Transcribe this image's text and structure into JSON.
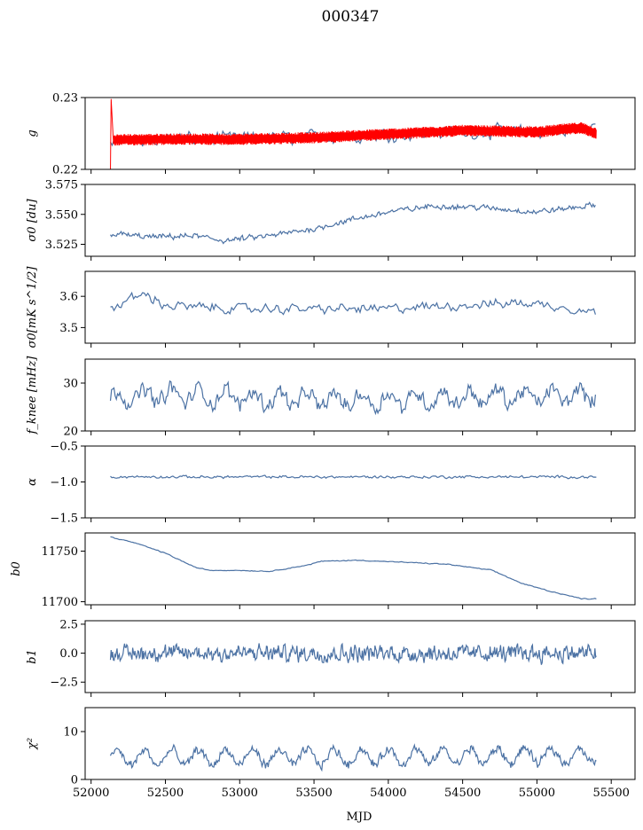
{
  "figure": {
    "title": "000347",
    "xlabel": "MJD",
    "xlim": [
      51960,
      55660
    ],
    "xticks": [
      52000,
      52500,
      53000,
      53500,
      54000,
      54500,
      55000,
      55500
    ],
    "x_data_range": [
      52130,
      55400
    ]
  },
  "colors": {
    "series": "#4c72a4",
    "fit": "#ff0000",
    "axes": "#000000"
  },
  "chart_data": [
    {
      "type": "line",
      "ylabel": "g",
      "ylim": [
        0.22,
        0.23
      ],
      "yticks": [
        "0.22",
        "0.23"
      ],
      "ytick_values": [
        0.22,
        0.23
      ],
      "series": [
        {
          "kind": "noisy",
          "trend": [
            [
              52130,
              0.2242
            ],
            [
              52500,
              0.2243
            ],
            [
              53000,
              0.2243
            ],
            [
              53500,
              0.2245
            ],
            [
              54000,
              0.2248
            ],
            [
              54500,
              0.2252
            ],
            [
              55000,
              0.2252
            ],
            [
              55400,
              0.2258
            ]
          ],
          "noise": 0.0011,
          "step": 12
        },
        {
          "kind": "band",
          "trend": [
            [
              52150,
              0.2241
            ],
            [
              52500,
              0.2242
            ],
            [
              53000,
              0.2242
            ],
            [
              53500,
              0.2244
            ],
            [
              54000,
              0.2249
            ],
            [
              54500,
              0.2254
            ],
            [
              55000,
              0.2252
            ],
            [
              55300,
              0.2258
            ],
            [
              55400,
              0.225
            ]
          ],
          "halfwidth": 0.0008,
          "spike": [
            [
              52130,
              0.2195
            ],
            [
              52135,
              0.2298
            ],
            [
              52150,
              0.224
            ]
          ]
        }
      ]
    },
    {
      "type": "line",
      "ylabel": "σ0 [du]",
      "ylim": [
        3.515,
        3.575
      ],
      "yticks": [
        "3.525",
        "3.550",
        "3.575"
      ],
      "ytick_values": [
        3.525,
        3.55,
        3.575
      ],
      "series": [
        {
          "kind": "noisy",
          "trend": [
            [
              52130,
              3.534
            ],
            [
              52400,
              3.531
            ],
            [
              52700,
              3.532
            ],
            [
              52900,
              3.528
            ],
            [
              53200,
              3.532
            ],
            [
              53500,
              3.538
            ],
            [
              53700,
              3.544
            ],
            [
              54000,
              3.552
            ],
            [
              54300,
              3.557
            ],
            [
              54600,
              3.556
            ],
            [
              55000,
              3.552
            ],
            [
              55400,
              3.558
            ]
          ],
          "noise": 0.0028,
          "step": 8
        }
      ]
    },
    {
      "type": "line",
      "ylabel": "σ0[mK s^1/2]",
      "ylim": [
        3.45,
        3.68
      ],
      "yticks": [
        "3.5",
        "3.6"
      ],
      "ytick_values": [
        3.5,
        3.6
      ],
      "series": [
        {
          "kind": "noisy",
          "trend": [
            [
              52130,
              3.56
            ],
            [
              52350,
              3.61
            ],
            [
              52500,
              3.57
            ],
            [
              53000,
              3.56
            ],
            [
              54000,
              3.56
            ],
            [
              54900,
              3.58
            ],
            [
              55100,
              3.57
            ],
            [
              55400,
              3.55
            ]
          ],
          "noise": 0.018,
          "step": 12
        }
      ]
    },
    {
      "type": "line",
      "ylabel": "f_knee [mHz]",
      "ylim": [
        20,
        35
      ],
      "yticks": [
        "20",
        "30"
      ],
      "ytick_values": [
        20,
        30
      ],
      "series": [
        {
          "kind": "noisy",
          "trend": [
            [
              52130,
              27
            ],
            [
              52500,
              27.5
            ],
            [
              53000,
              27
            ],
            [
              53500,
              26.5
            ],
            [
              54000,
              26.5
            ],
            [
              54500,
              27
            ],
            [
              55000,
              27.2
            ],
            [
              55400,
              27.5
            ]
          ],
          "noise": 1.9,
          "step": 8,
          "periodic": 1.5
        }
      ]
    },
    {
      "type": "line",
      "ylabel": "α",
      "ylim": [
        -1.5,
        -0.5
      ],
      "yticks": [
        "−1.5",
        "−1.0",
        "−0.5"
      ],
      "ytick_values": [
        -1.5,
        -1.0,
        -0.5
      ],
      "series": [
        {
          "kind": "noisy",
          "trend": [
            [
              52130,
              -0.93
            ],
            [
              55400,
              -0.93
            ]
          ],
          "noise": 0.022,
          "step": 10
        }
      ]
    },
    {
      "type": "line",
      "ylabel": "b0",
      "ylim": [
        11697,
        11768
      ],
      "yticks": [
        "11700",
        "11750"
      ],
      "ytick_values": [
        11700,
        11750
      ],
      "series": [
        {
          "kind": "noisy",
          "trend": [
            [
              52130,
              11764
            ],
            [
              52300,
              11758
            ],
            [
              52500,
              11748
            ],
            [
              52700,
              11734
            ],
            [
              52800,
              11731
            ],
            [
              53000,
              11731
            ],
            [
              53200,
              11730
            ],
            [
              53450,
              11736
            ],
            [
              53550,
              11740
            ],
            [
              53800,
              11741
            ],
            [
              54100,
              11739
            ],
            [
              54400,
              11737
            ],
            [
              54700,
              11731
            ],
            [
              54900,
              11718
            ],
            [
              55100,
              11710
            ],
            [
              55300,
              11703
            ],
            [
              55400,
              11703
            ]
          ],
          "noise": 0.5,
          "step": 10
        }
      ]
    },
    {
      "type": "line",
      "ylabel": "b1",
      "ylim": [
        -3.4,
        2.8
      ],
      "yticks": [
        "−2.5",
        "0.0",
        "2.5"
      ],
      "ytick_values": [
        -2.5,
        0.0,
        2.5
      ],
      "series": [
        {
          "kind": "noisy",
          "trend": [
            [
              52130,
              0.0
            ],
            [
              55400,
              0.0
            ]
          ],
          "noise": 0.85,
          "step": 5
        }
      ]
    },
    {
      "type": "line",
      "ylabel": "χ²",
      "ylim": [
        0,
        15
      ],
      "yticks": [
        "0",
        "10"
      ],
      "ytick_values": [
        0,
        10
      ],
      "series": [
        {
          "kind": "noisy",
          "trend": [
            [
              52130,
              4.5
            ],
            [
              55400,
              5
            ]
          ],
          "noise": 1.1,
          "step": 6,
          "periodic": 1.6
        }
      ]
    }
  ]
}
